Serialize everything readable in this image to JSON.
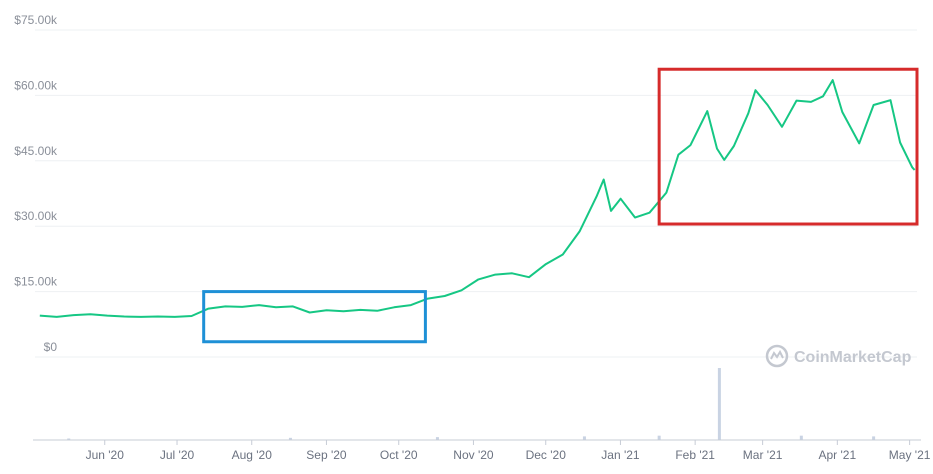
{
  "watermark": {
    "text": "CoinMarketCap",
    "icon": "coinmarketcap-logo-icon"
  },
  "colors": {
    "line": "#16c784",
    "highlight_blue": "#1e90d6",
    "highlight_red": "#d62b2b",
    "grid": "#eef0f3",
    "volume": "#c9d3e3"
  },
  "chart_data": {
    "type": "line",
    "title": "",
    "xlabel": "",
    "ylabel": "",
    "ylim": [
      0,
      75000
    ],
    "y_ticks": [
      "$0",
      "$15.00k",
      "$30.00k",
      "$45.00k",
      "$60.00k",
      "$75.00k"
    ],
    "x_ticks": [
      "Jun '20",
      "Jul '20",
      "Aug '20",
      "Sep '20",
      "Oct '20",
      "Nov '20",
      "Dec '20",
      "Jan '21",
      "Feb '21",
      "Mar '21",
      "Apr '21",
      "May '21"
    ],
    "grid": true,
    "series": [
      {
        "values": [
          [
            "2020-05-20",
            9500
          ],
          [
            "2020-05-27",
            9200
          ],
          [
            "2020-06-03",
            9600
          ],
          [
            "2020-06-10",
            9800
          ],
          [
            "2020-06-17",
            9500
          ],
          [
            "2020-06-24",
            9300
          ],
          [
            "2020-07-01",
            9200
          ],
          [
            "2020-07-08",
            9300
          ],
          [
            "2020-07-15",
            9200
          ],
          [
            "2020-07-22",
            9400
          ],
          [
            "2020-07-29",
            11100
          ],
          [
            "2020-08-05",
            11600
          ],
          [
            "2020-08-12",
            11500
          ],
          [
            "2020-08-19",
            11900
          ],
          [
            "2020-08-26",
            11400
          ],
          [
            "2020-09-02",
            11600
          ],
          [
            "2020-09-09",
            10200
          ],
          [
            "2020-09-16",
            10700
          ],
          [
            "2020-09-23",
            10500
          ],
          [
            "2020-09-30",
            10800
          ],
          [
            "2020-10-07",
            10600
          ],
          [
            "2020-10-14",
            11400
          ],
          [
            "2020-10-21",
            11900
          ],
          [
            "2020-10-28",
            13400
          ],
          [
            "2020-11-04",
            14000
          ],
          [
            "2020-11-11",
            15300
          ],
          [
            "2020-11-18",
            17800
          ],
          [
            "2020-11-25",
            18900
          ],
          [
            "2020-12-02",
            19200
          ],
          [
            "2020-12-09",
            18300
          ],
          [
            "2020-12-16",
            21300
          ],
          [
            "2020-12-23",
            23500
          ],
          [
            "2020-12-30",
            28800
          ],
          [
            "2021-01-06",
            36800
          ],
          [
            "2021-01-09",
            40700
          ],
          [
            "2021-01-12",
            33500
          ],
          [
            "2021-01-16",
            36300
          ],
          [
            "2021-01-22",
            32000
          ],
          [
            "2021-01-28",
            33100
          ],
          [
            "2021-02-04",
            37700
          ],
          [
            "2021-02-09",
            46400
          ],
          [
            "2021-02-14",
            48600
          ],
          [
            "2021-02-21",
            56400
          ],
          [
            "2021-02-25",
            47800
          ],
          [
            "2021-02-28",
            45200
          ],
          [
            "2021-03-04",
            48400
          ],
          [
            "2021-03-10",
            55900
          ],
          [
            "2021-03-13",
            61200
          ],
          [
            "2021-03-18",
            57800
          ],
          [
            "2021-03-24",
            52800
          ],
          [
            "2021-03-30",
            58800
          ],
          [
            "2021-04-05",
            58500
          ],
          [
            "2021-04-10",
            59800
          ],
          [
            "2021-04-14",
            63500
          ],
          [
            "2021-04-18",
            56200
          ],
          [
            "2021-04-25",
            49000
          ],
          [
            "2021-05-01",
            57800
          ],
          [
            "2021-05-08",
            58900
          ],
          [
            "2021-05-12",
            49200
          ],
          [
            "2021-05-17",
            43500
          ],
          [
            "2021-05-18",
            42900
          ]
        ]
      }
    ],
    "volume": [
      [
        "2020-06-01",
        0.02
      ],
      [
        "2020-09-01",
        0.03
      ],
      [
        "2020-11-01",
        0.04
      ],
      [
        "2021-01-01",
        0.05
      ],
      [
        "2021-02-01",
        0.06
      ],
      [
        "2021-02-26",
        1.0
      ],
      [
        "2021-04-01",
        0.06
      ],
      [
        "2021-05-01",
        0.05
      ]
    ],
    "annotations": [
      {
        "shape": "rectangle",
        "color": "blue",
        "from": "2020-07-27",
        "to": "2020-10-27",
        "y_from": 3500,
        "y_to": 15000
      },
      {
        "shape": "rectangle",
        "color": "red",
        "from": "2021-02-01",
        "to": "2021-05-19",
        "y_from": 30500,
        "y_to": 66000
      }
    ]
  }
}
